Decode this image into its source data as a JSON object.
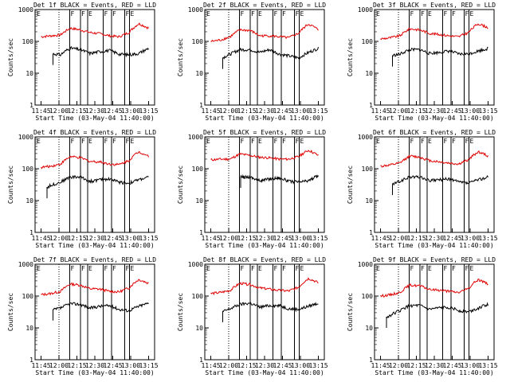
{
  "chart_data": [
    {
      "type": "line",
      "title": "Det 1f BLACK = Events, RED = LLD",
      "black_start": 0.1,
      "black_level": [
        50,
        42,
        38,
        62,
        55,
        42,
        48,
        52,
        40,
        38,
        42,
        60
      ],
      "red_level": [
        140,
        150,
        160,
        260,
        230,
        190,
        175,
        150,
        140,
        190,
        360,
        260
      ],
      "filled": true
    },
    {
      "type": "line",
      "title": "Det 2f BLACK = Events, RED = LLD",
      "black_start": 0.1,
      "black_level": [
        20,
        28,
        40,
        55,
        55,
        45,
        55,
        40,
        35,
        30,
        45,
        60
      ],
      "red_level": [
        100,
        110,
        140,
        230,
        220,
        150,
        150,
        140,
        130,
        180,
        350,
        230
      ],
      "filled": true
    },
    {
      "type": "line",
      "title": "Det 3f BLACK = Events, RED = LLD",
      "black_start": 0.1,
      "black_level": [
        30,
        35,
        40,
        55,
        55,
        42,
        45,
        50,
        40,
        40,
        50,
        60
      ],
      "red_level": [
        120,
        130,
        150,
        250,
        230,
        180,
        165,
        150,
        140,
        190,
        360,
        270
      ],
      "filled": true
    },
    {
      "type": "line",
      "title": "Det 4f BLACK = Events, RED = LLD",
      "black_start": 0.05,
      "black_level": [
        20,
        30,
        38,
        55,
        55,
        40,
        45,
        48,
        38,
        35,
        45,
        55
      ],
      "red_level": [
        110,
        120,
        140,
        240,
        220,
        170,
        165,
        140,
        135,
        180,
        340,
        250
      ],
      "filled": true
    },
    {
      "type": "line",
      "title": "Det 5f BLACK = Events, RED = LLD",
      "black_start": 0.25,
      "black_level": [
        50,
        40,
        38,
        55,
        55,
        42,
        48,
        52,
        40,
        38,
        42,
        60
      ],
      "red_level": [
        190,
        200,
        200,
        290,
        260,
        230,
        220,
        200,
        200,
        240,
        380,
        260
      ],
      "filled": true
    },
    {
      "type": "line",
      "title": "Det 6f BLACK = Events, RED = LLD",
      "black_start": 0.1,
      "black_level": [
        22,
        30,
        40,
        55,
        55,
        42,
        45,
        48,
        38,
        35,
        45,
        55
      ],
      "red_level": [
        120,
        130,
        150,
        250,
        230,
        180,
        165,
        150,
        140,
        190,
        340,
        250
      ],
      "filled": true
    },
    {
      "type": "line",
      "title": "Det 7f BLACK = Events, RED = LLD",
      "black_start": 0.1,
      "black_level": [
        25,
        35,
        42,
        58,
        55,
        42,
        48,
        50,
        38,
        35,
        48,
        60
      ],
      "red_level": [
        110,
        120,
        140,
        240,
        220,
        170,
        165,
        140,
        135,
        180,
        330,
        250
      ],
      "filled": true
    },
    {
      "type": "line",
      "title": "Det 8f BLACK = Events, RED = LLD",
      "black_start": 0.1,
      "black_level": [
        22,
        30,
        40,
        55,
        60,
        45,
        50,
        50,
        40,
        38,
        48,
        60
      ],
      "red_level": [
        120,
        130,
        150,
        250,
        230,
        180,
        165,
        150,
        145,
        190,
        360,
        260
      ],
      "filled": true
    },
    {
      "type": "line",
      "title": "Det 9f BLACK = Events, RED = LLD",
      "black_start": 0.05,
      "black_level": [
        15,
        25,
        35,
        50,
        50,
        38,
        42,
        45,
        35,
        32,
        42,
        55
      ],
      "red_level": [
        100,
        110,
        130,
        220,
        210,
        160,
        155,
        140,
        130,
        170,
        330,
        240
      ],
      "filled": true
    }
  ],
  "shared": {
    "ylabel": "Counts/sec",
    "xlabel": "Start Time (03-May-04 11:40:00)",
    "x_ticks": [
      "11:45",
      "12:00",
      "12:15",
      "12:30",
      "12:45",
      "13:00",
      "13:15"
    ],
    "y_ticks": [
      "1",
      "10",
      "100",
      "1000"
    ],
    "ylim": [
      1,
      1000
    ],
    "flag_letters": [
      "E",
      "F",
      "F",
      "E",
      "F",
      "F",
      "F",
      "E"
    ],
    "colors": {
      "events": "#000000",
      "lld": "#e00000"
    }
  }
}
